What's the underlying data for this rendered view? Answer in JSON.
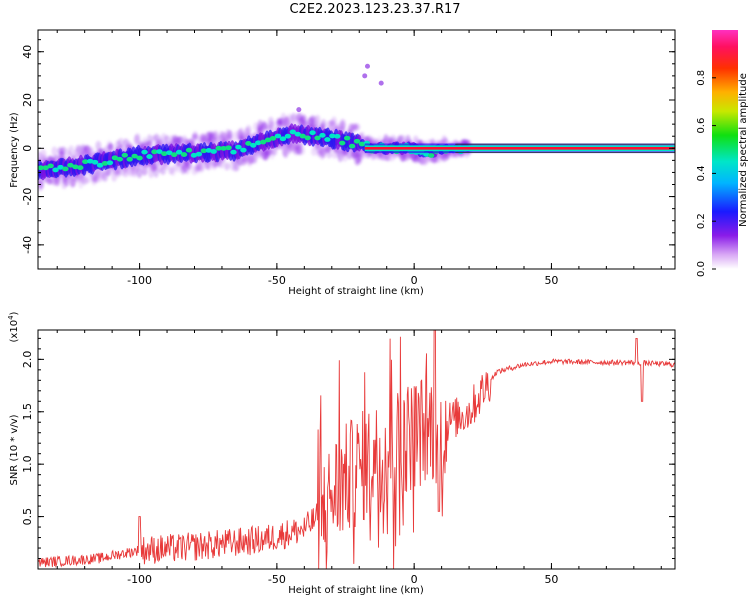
{
  "title": "C2E2.2023.123.23.37.R17",
  "colors": {
    "snr_line": "#e83a3a",
    "ridge_core": "#ff1030",
    "axis": "#000000"
  },
  "chart_data": [
    {
      "type": "heatmap",
      "xlabel": "Height of straight line (km)",
      "ylabel": "Frequency (Hz)",
      "xlim": [
        -137,
        95
      ],
      "ylim": [
        -50,
        49
      ],
      "xticks": [
        -100,
        -50,
        0,
        50
      ],
      "xtick_labels": [
        "-100",
        "-50",
        "0",
        "50"
      ],
      "yticks": [
        -40,
        -20,
        0,
        20,
        40
      ],
      "ytick_labels": [
        "-40",
        "-20",
        "0",
        "20",
        "40"
      ],
      "ridge": [
        {
          "x": -137,
          "y": -9
        },
        {
          "x": -120,
          "y": -7
        },
        {
          "x": -100,
          "y": -3
        },
        {
          "x": -80,
          "y": -2
        },
        {
          "x": -65,
          "y": -1
        },
        {
          "x": -55,
          "y": 3
        },
        {
          "x": -45,
          "y": 6
        },
        {
          "x": -35,
          "y": 5
        },
        {
          "x": -25,
          "y": 3
        },
        {
          "x": -15,
          "y": 0
        },
        {
          "x": 0,
          "y": 0
        },
        {
          "x": 5,
          "y": -2
        },
        {
          "x": 12,
          "y": 0
        },
        {
          "x": 95,
          "y": 0
        }
      ],
      "colorbar": {
        "label": "Normalized spectral amplitude",
        "ticks": [
          0.0,
          0.2,
          0.4,
          0.6,
          0.8
        ],
        "tick_labels": [
          "0.0",
          "0.2",
          "0.4",
          "0.6",
          "0.8"
        ],
        "range": [
          0,
          1
        ]
      }
    },
    {
      "type": "line",
      "xlabel": "Height of straight line (km)",
      "ylabel": "SNR (10 * v/v)",
      "multiplier_label": "(x10",
      "multiplier_exp": "4",
      "xlim": [
        -137,
        95
      ],
      "ylim": [
        0,
        2.28
      ],
      "xticks": [
        -100,
        -50,
        0,
        50
      ],
      "xtick_labels": [
        "-100",
        "-50",
        "0",
        "50"
      ],
      "yticks": [
        0.5,
        1.0,
        1.5,
        2.0
      ],
      "ytick_labels": [
        "0.5",
        "1.0",
        "1.5",
        "2.0"
      ],
      "trend": [
        {
          "x": -137,
          "y": 0.06
        },
        {
          "x": -115,
          "y": 0.1
        },
        {
          "x": -100,
          "y": 0.18
        },
        {
          "x": -85,
          "y": 0.2
        },
        {
          "x": -70,
          "y": 0.24
        },
        {
          "x": -55,
          "y": 0.28
        },
        {
          "x": -40,
          "y": 0.38
        },
        {
          "x": -33,
          "y": 0.55
        },
        {
          "x": -28,
          "y": 0.78
        },
        {
          "x": -20,
          "y": 0.95
        },
        {
          "x": -15,
          "y": 1.05
        },
        {
          "x": -5,
          "y": 1.2
        },
        {
          "x": 0,
          "y": 1.3
        },
        {
          "x": 10,
          "y": 1.38
        },
        {
          "x": 20,
          "y": 1.5
        },
        {
          "x": 25,
          "y": 1.7
        },
        {
          "x": 30,
          "y": 1.88
        },
        {
          "x": 40,
          "y": 1.95
        },
        {
          "x": 50,
          "y": 1.98
        },
        {
          "x": 70,
          "y": 1.97
        },
        {
          "x": 80,
          "y": 1.97
        },
        {
          "x": 95,
          "y": 1.95
        }
      ],
      "features": [
        {
          "x": -100,
          "y": 0.5
        },
        {
          "x": 7.5,
          "y": 2.28
        },
        {
          "x": 9,
          "y": 0.55
        },
        {
          "x": 81,
          "y": 2.2
        },
        {
          "x": 83,
          "y": 1.6
        }
      ]
    }
  ]
}
